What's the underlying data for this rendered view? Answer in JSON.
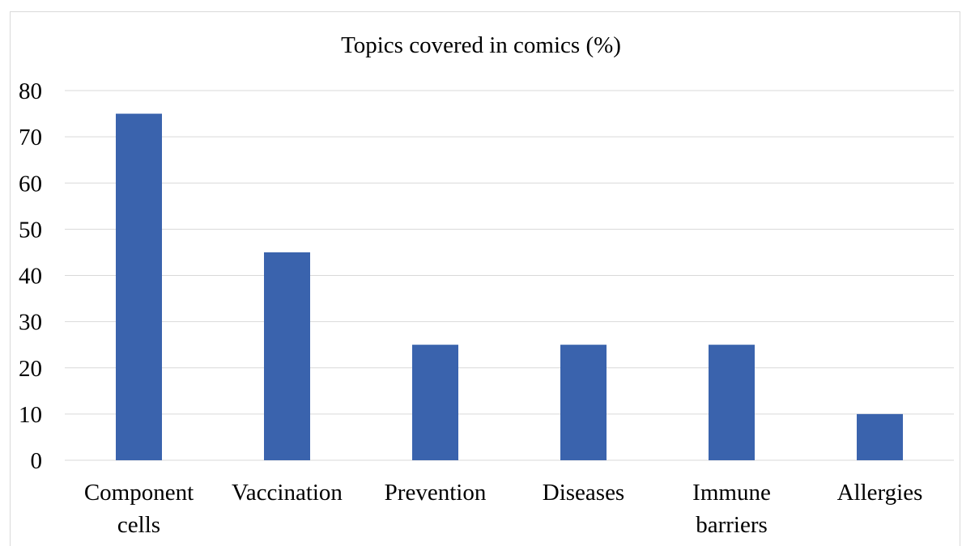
{
  "chart_data": {
    "type": "bar",
    "title": "Topics covered in comics (%)",
    "categories": [
      [
        "Component",
        "cells"
      ],
      [
        "Vaccination"
      ],
      [
        "Prevention"
      ],
      [
        "Diseases"
      ],
      [
        "Immune",
        "barriers"
      ],
      [
        "Allergies"
      ]
    ],
    "values": [
      75,
      45,
      25,
      25,
      25,
      10
    ],
    "ylim": [
      0,
      80
    ],
    "yticks": [
      0,
      10,
      20,
      30,
      40,
      50,
      60,
      70,
      80
    ],
    "xlabel": "",
    "ylabel": "",
    "grid": true,
    "legend": "none",
    "bar_color": "#3a63ad",
    "grid_color": "#d9d9d9"
  }
}
